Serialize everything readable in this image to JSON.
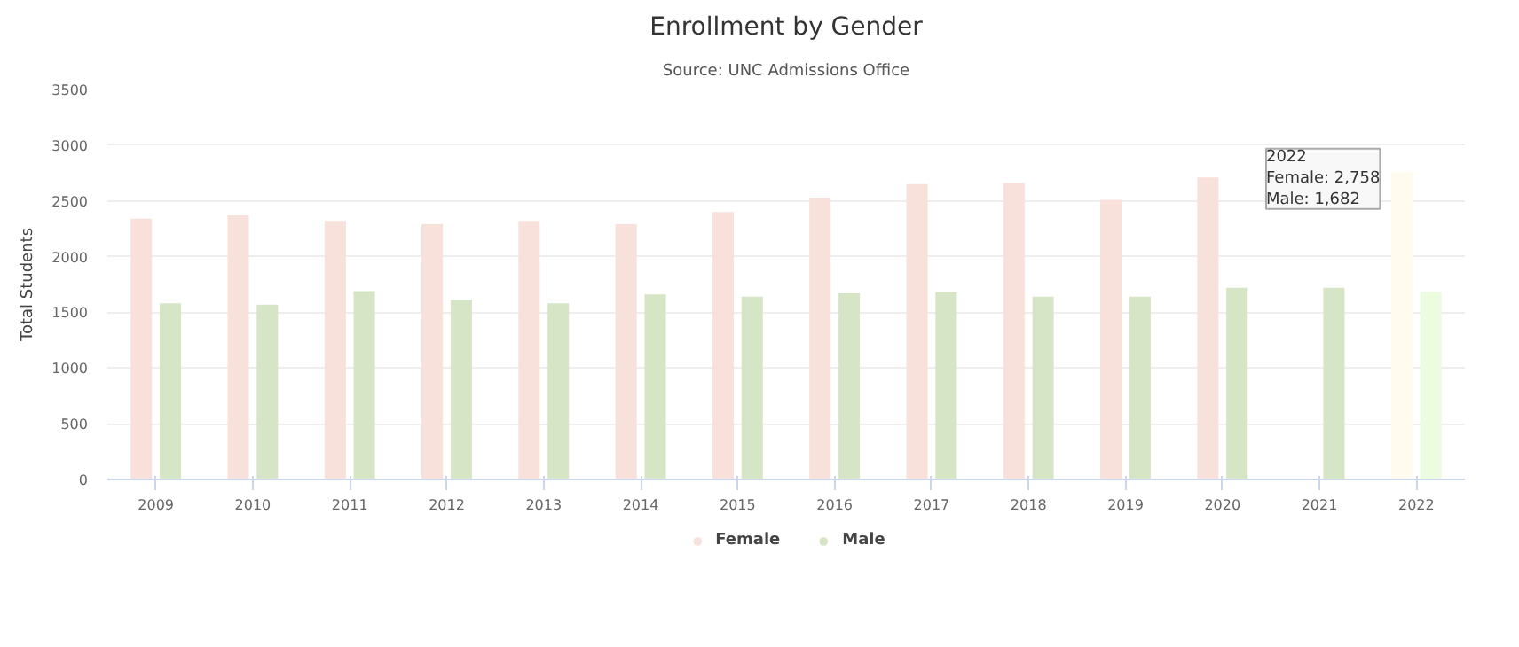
{
  "chart_data": {
    "type": "bar",
    "title": "Enrollment by Gender",
    "subtitle": "Source: UNC Admissions Office",
    "ylabel": "Total Students",
    "categories": [
      "2009",
      "2010",
      "2011",
      "2012",
      "2013",
      "2014",
      "2015",
      "2016",
      "2017",
      "2018",
      "2019",
      "2020",
      "2021",
      "2022"
    ],
    "series": [
      {
        "name": "Female",
        "color": "#f7e1da",
        "colors": [
          "#f7e1da",
          "#f7e1da",
          "#f7e1da",
          "#f7e1da",
          "#f7e1da",
          "#f7e1da",
          "#f7e1da",
          "#f7e1da",
          "#f7e1da",
          "#f7e1da",
          "#f7e1da",
          "#f7e1da",
          "#f7e1da",
          "#fffbee"
        ],
        "values": [
          2340,
          2370,
          2320,
          2290,
          2320,
          2290,
          2400,
          2530,
          2650,
          2660,
          2510,
          2710,
          null,
          2758
        ]
      },
      {
        "name": "Male",
        "color": "#d5e5c5",
        "colors": [
          "#d5e5c5",
          "#d5e5c5",
          "#d5e5c5",
          "#d5e5c5",
          "#d5e5c5",
          "#d5e5c5",
          "#d5e5c5",
          "#d5e5c5",
          "#d5e5c5",
          "#d5e5c5",
          "#d5e5c5",
          "#d5e5c5",
          "#d5e5c5",
          "#ecfce0"
        ],
        "values": [
          1580,
          1570,
          1690,
          1610,
          1580,
          1660,
          1640,
          1670,
          1680,
          1640,
          1640,
          1720,
          1720,
          1682
        ]
      }
    ],
    "ylim": [
      0,
      3500
    ],
    "yticks": [
      0,
      500,
      1000,
      1500,
      2000,
      2500,
      3000,
      3500
    ],
    "grid": "y",
    "legend": "bottom",
    "annotations": [
      {
        "text": "2022\nFemale: 2,758\nMale: 1,682",
        "x": "2022",
        "y": 2758
      }
    ]
  }
}
